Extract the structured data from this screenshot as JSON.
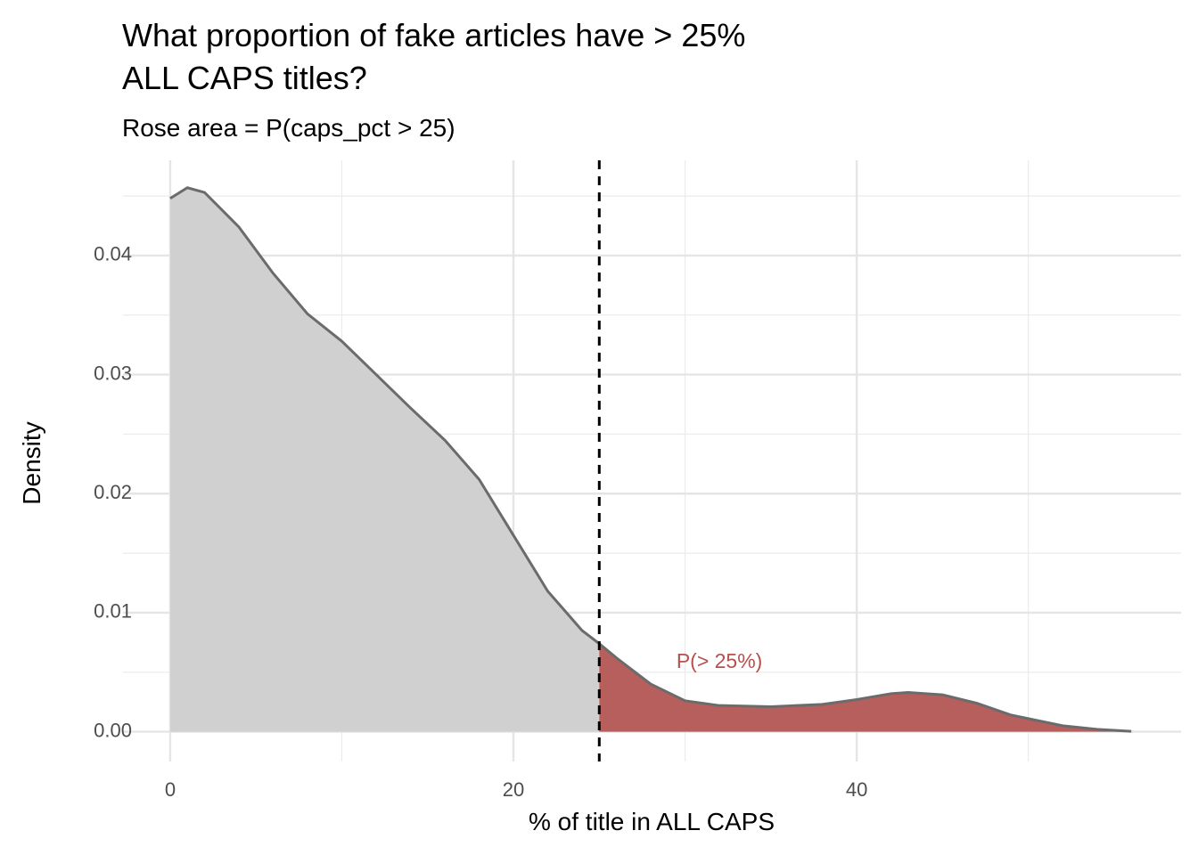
{
  "chart_data": {
    "type": "density",
    "title": [
      "What proportion of fake articles have > 25%",
      "ALL CAPS titles?"
    ],
    "subtitle": "Rose area = P(caps_pct > 25)",
    "x_label": "% of title in ALL CAPS",
    "y_label": "Density",
    "x": [
      0,
      1,
      2,
      4,
      6,
      8,
      10,
      12,
      14,
      16,
      18,
      20,
      22,
      24,
      25,
      26,
      28,
      30,
      32,
      35,
      38,
      40,
      42,
      43,
      45,
      47,
      49,
      52,
      54,
      56
    ],
    "values": [
      0.0448,
      0.0457,
      0.0453,
      0.0424,
      0.0385,
      0.0351,
      0.0328,
      0.03,
      0.0272,
      0.0245,
      0.0212,
      0.0165,
      0.0118,
      0.0085,
      0.0074,
      0.0062,
      0.004,
      0.0026,
      0.0022,
      0.0021,
      0.0023,
      0.0027,
      0.0032,
      0.0033,
      0.0031,
      0.0024,
      0.0014,
      0.0005,
      0.0002,
      3e-05
    ],
    "threshold": 25,
    "annotation": {
      "text": "P(> 25%)",
      "x": 32,
      "y": 0.0058,
      "color": "#b5504f"
    },
    "below_color": "#d0d0d0",
    "above_color": "#b65f5d",
    "line_color": "#6b6b6b",
    "threshold_color": "#000000",
    "xlim": [
      -2.75,
      58.9
    ],
    "ylim": [
      -0.0025,
      0.048
    ],
    "xticks": [
      0,
      20,
      40
    ],
    "x_minor_ticks": [
      10,
      30,
      50
    ],
    "yticks": [
      {
        "value": 0,
        "label": "0.00"
      },
      0.01,
      0.02,
      0.03,
      0.04
    ],
    "y_minor_ticks": [
      0.005,
      0.015,
      0.025,
      0.035,
      0.045
    ],
    "grid": true
  }
}
